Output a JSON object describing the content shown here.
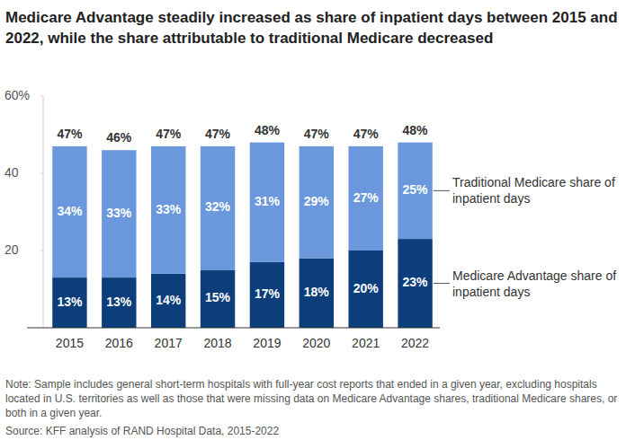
{
  "chart_data": {
    "type": "bar",
    "title": "Medicare Advantage steadily increased as share of inpatient days between 2015 and 2022, while the share attributable to traditional Medicare decreased",
    "categories": [
      "2015",
      "2016",
      "2017",
      "2018",
      "2019",
      "2020",
      "2021",
      "2022"
    ],
    "series": [
      {
        "name": "Medicare Advantage share of inpatient days",
        "color": "#0b3e7b",
        "values": [
          13,
          13,
          14,
          15,
          17,
          18,
          20,
          23
        ],
        "value_labels": [
          "13%",
          "13%",
          "14%",
          "15%",
          "17%",
          "18%",
          "20%",
          "23%"
        ]
      },
      {
        "name": "Traditional Medicare share of inpatient days",
        "color": "#6b98dc",
        "values": [
          34,
          33,
          33,
          32,
          31,
          29,
          27,
          25
        ],
        "value_labels": [
          "34%",
          "33%",
          "33%",
          "32%",
          "31%",
          "29%",
          "27%",
          "25%"
        ]
      }
    ],
    "totals": [
      47,
      46,
      47,
      47,
      48,
      47,
      47,
      48
    ],
    "total_labels": [
      "47%",
      "46%",
      "47%",
      "47%",
      "48%",
      "47%",
      "47%",
      "48%"
    ],
    "ylim": [
      0,
      60
    ],
    "yticks": [
      20,
      40,
      {
        "value": 60,
        "label": "60%"
      }
    ],
    "grid": false,
    "stacked": true,
    "data_labels": true,
    "legend": "right",
    "note": "Note: Sample includes general short-term hospitals with full-year cost reports that ended in a given year, excluding hospitals located in U.S. territories as well as those that were missing data on Medicare Advantage shares, traditional Medicare shares, or both in a given year.",
    "source": "Source: KFF analysis of RAND Hospital Data, 2015-2022"
  }
}
